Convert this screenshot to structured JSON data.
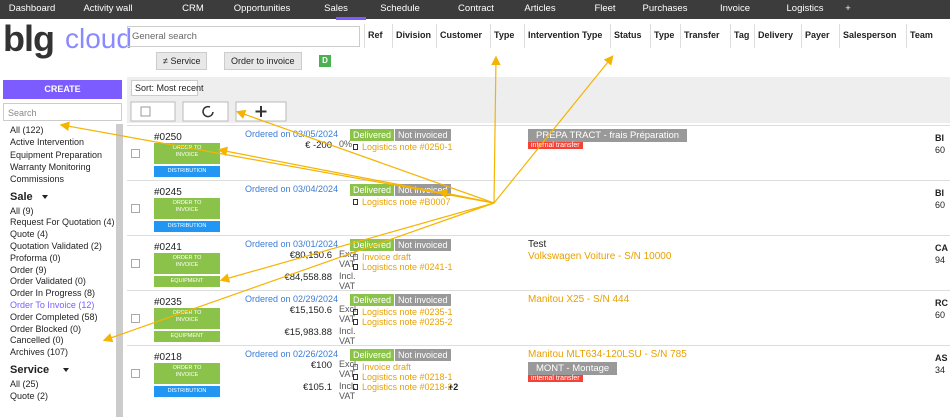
{
  "nav": [
    "Dashboard",
    "Activity wall",
    "CRM",
    "Opportunities",
    "Sales",
    "Schedule",
    "Contract",
    "Articles",
    "Fleet",
    "Purchases",
    "Invoice",
    "Logistics",
    "+"
  ],
  "logo": {
    "main": "blg",
    "accent": "cloud"
  },
  "search_placeholder": "General search",
  "columns": [
    "Ref",
    "Division",
    "Customer",
    "Type",
    "Intervention Type",
    "Status",
    "Type",
    "Transfer",
    "Tag",
    "Delivery",
    "Payer",
    "Salesperson",
    "Team"
  ],
  "filters": [
    "≠ Service",
    "Order to invoice"
  ],
  "filter_badge": "D",
  "create": "CREATE",
  "sidebar_search": "Search",
  "sort": "Sort: Most recent",
  "sidebar": {
    "top": [
      "All (122)",
      "Active Intervention",
      "Equipment Preparation",
      "Warranty Monitoring",
      "Commissions"
    ],
    "sections": [
      {
        "title": "Sale",
        "items": [
          "All (9)",
          "Request For Quotation (4)",
          "Quote (4)",
          "Quotation Validated (2)",
          "Proforma (0)",
          "Order (9)",
          "Order Validated (0)",
          "Order In Progress (8)",
          "Order To Invoice (12)",
          "Order Completed (58)",
          "Order Blocked (0)",
          "Cancelled (0)",
          "Archives (107)"
        ]
      },
      {
        "title": "Service",
        "items": [
          "All (25)",
          "Quote (2)"
        ]
      }
    ]
  },
  "rows": [
    {
      "ref": "#0250",
      "tags": [
        {
          "label": "ORDER TO INVOICE",
          "color": "#8bc34a"
        },
        {
          "label": "DISTRIBUTION",
          "color": "#2196f3"
        }
      ],
      "ordered": "Ordered on 03/05/2024",
      "amounts": [
        {
          "amount": "€ -200",
          "unit": "0%"
        }
      ],
      "status": [
        "Delivered",
        "Not invoiced"
      ],
      "docs": [
        "Logistics note #0250-1"
      ],
      "intervention": {
        "badge": "PREPA TRACT - frais Préparation",
        "tag": "internal transfer"
      },
      "customer": [
        "BI",
        "60"
      ]
    },
    {
      "ref": "#0245",
      "tags": [
        {
          "label": "ORDER TO INVOICE",
          "color": "#8bc34a"
        },
        {
          "label": "DISTRIBUTION",
          "color": "#2196f3"
        }
      ],
      "ordered": "Ordered on 03/04/2024",
      "amounts": [],
      "status": [
        "Delivered",
        "Not invoiced"
      ],
      "docs": [
        "Logistics note #B0007"
      ],
      "intervention": {},
      "customer": [
        "BI",
        "60"
      ]
    },
    {
      "ref": "#0241",
      "tags": [
        {
          "label": "ORDER TO INVOICE",
          "color": "#8bc34a"
        },
        {
          "label": "EQUIPMENT",
          "color": "#8bc34a"
        }
      ],
      "ordered": "Ordered on 03/01/2024",
      "amounts": [
        {
          "amount": "€80,150.6",
          "unit": "Excl. VAT"
        },
        {
          "amount": "€84,558.88",
          "unit": "Incl. VAT"
        }
      ],
      "status": [
        "Delivered",
        "Not invoiced"
      ],
      "docs": [
        "Invoice draft",
        "Logistics note #0241-1"
      ],
      "intervention": {
        "title": "Test",
        "machine": "Volkswagen Voiture - S/N 10000"
      },
      "customer": [
        "CA",
        "94"
      ]
    },
    {
      "ref": "#0235",
      "tags": [
        {
          "label": "ORDER TO INVOICE",
          "color": "#8bc34a"
        },
        {
          "label": "EQUIPMENT",
          "color": "#8bc34a"
        }
      ],
      "ordered": "Ordered on 02/29/2024",
      "amounts": [
        {
          "amount": "€15,150.6",
          "unit": "Excl. VAT"
        },
        {
          "amount": "€15,983.88",
          "unit": "Incl. VAT"
        }
      ],
      "status": [
        "Delivered",
        "Not invoiced"
      ],
      "docs": [
        "Logistics note #0235-1",
        "Logistics note #0235-2"
      ],
      "intervention": {
        "machine": "Manitou X25 - S/N 444"
      },
      "customer": [
        "RC",
        "60"
      ]
    },
    {
      "ref": "#0218",
      "tags": [
        {
          "label": "ORDER TO INVOICE",
          "color": "#8bc34a"
        },
        {
          "label": "DISTRIBUTION",
          "color": "#2196f3"
        }
      ],
      "ordered": "Ordered on 02/26/2024",
      "amounts": [
        {
          "amount": "€100",
          "unit": "Excl. VAT"
        },
        {
          "amount": "€105.1",
          "unit": "Incl. VAT"
        }
      ],
      "status": [
        "Delivered",
        "Not invoiced"
      ],
      "docs": [
        "Invoice draft",
        "Logistics note #0218-1",
        "Logistics note #0218-2"
      ],
      "docs_more": "+2",
      "intervention": {
        "machine": "Manitou MLT634-120LSU - S/N 785",
        "badge": "MONT - Montage",
        "tag": "internal transfer"
      },
      "customer": [
        "AS",
        "34"
      ]
    }
  ]
}
